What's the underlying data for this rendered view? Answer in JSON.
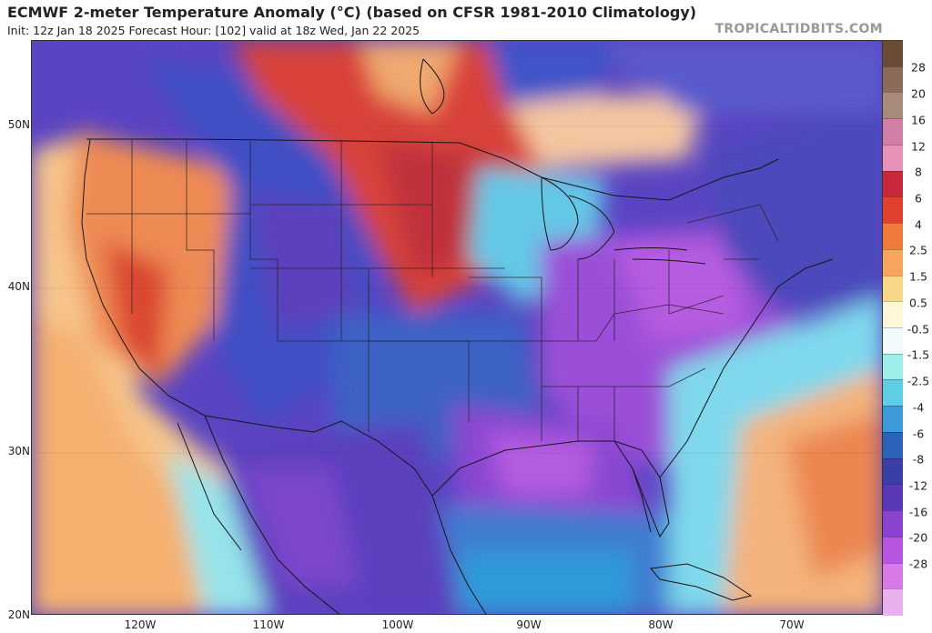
{
  "header": {
    "title": "ECMWF 2-meter Temperature Anomaly (°C) (based on CFSR 1981-2010 Climatology)",
    "subtitle": "Init: 12z Jan 18 2025   Forecast Hour: [102]   valid at 18z Wed, Jan 22 2025",
    "brand": "TROPICALTIDBITS.COM"
  },
  "axes": {
    "lat_labels": [
      "50N",
      "40N",
      "30N",
      "20N"
    ],
    "lon_labels": [
      "120W",
      "110W",
      "100W",
      "90W",
      "80W",
      "70W"
    ]
  },
  "colorbar": {
    "labels": [
      "28",
      "20",
      "16",
      "12",
      "8",
      "6",
      "4",
      "2.5",
      "1.5",
      "0.5",
      "-0.5",
      "-1.5",
      "-2.5",
      "-4",
      "-6",
      "-8",
      "-12",
      "-16",
      "-20",
      "-28"
    ],
    "colors": [
      "#6b4a36",
      "#8a6a58",
      "#a88a7c",
      "#d27fa8",
      "#e892b9",
      "#c8283c",
      "#e0402e",
      "#f07a3c",
      "#f5a65c",
      "#f8d68a",
      "#fdf6d8",
      "#f2fbfb",
      "#9deee8",
      "#5fcde3",
      "#3c9ad8",
      "#2c62b8",
      "#3a3fa6",
      "#5a39b8",
      "#8a43d0",
      "#b855de",
      "#d77ae8",
      "#eab0ee"
    ]
  },
  "map": {
    "colors": {
      "ocean_warm": "#f5b878",
      "ocean_cool": "#8fe6ec",
      "ocean_blue": "#46a8de",
      "cold_core": "#b45be0",
      "cold_mid": "#7f49cf",
      "cold_deep": "#4b3eb4",
      "warm_core": "#d83a30",
      "warm_mid": "#ee7a48",
      "borders": "#1a1a1a"
    }
  }
}
